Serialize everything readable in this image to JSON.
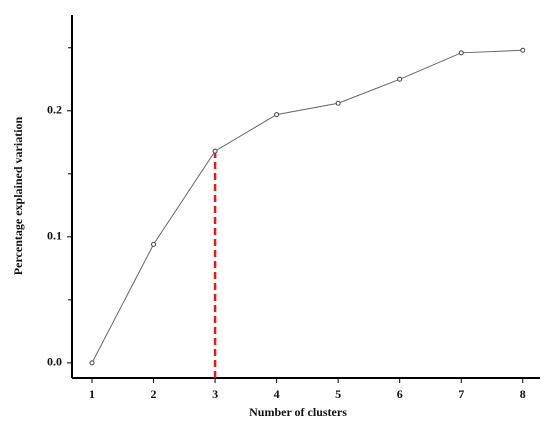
{
  "chart_data": {
    "type": "line",
    "x_label": "Number  of clusters",
    "y_label": "Percentage explained  variation",
    "x": [
      1,
      2,
      3,
      4,
      5,
      6,
      7,
      8
    ],
    "series": [
      {
        "color": "#666666",
        "values": [
          0.0,
          0.094,
          0.168,
          0.197,
          0.206,
          0.225,
          0.246,
          0.248
        ]
      }
    ],
    "xlim": [
      0.675,
      8.28
    ],
    "xticks": [
      1,
      2,
      3,
      4,
      5,
      6,
      7,
      8
    ],
    "ylim": [
      -0.012,
      0.276
    ],
    "yticks": [
      {
        "value": 0,
        "label": "0.0"
      },
      0.1,
      0.2
    ],
    "yminorticks": [
      0.05,
      0.15,
      0.25
    ],
    "vline": {
      "x": 3,
      "color": "#e8191a"
    }
  }
}
